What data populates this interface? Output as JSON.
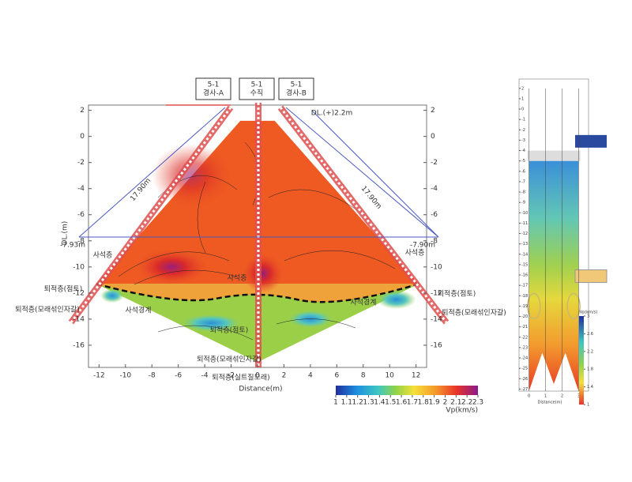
{
  "chart_data": [
    {
      "type": "contour",
      "xlabel": "Distance(m)",
      "ylabel": "DL.(m)",
      "xlim": [
        -12.8,
        12.8
      ],
      "xticks": [
        -12,
        -10,
        -8,
        -6,
        -4,
        -2,
        0,
        2,
        4,
        6,
        8,
        10,
        12
      ],
      "ylim": [
        -17.7,
        2.4
      ],
      "yticks": [
        2,
        0,
        -2,
        -4,
        -6,
        -8,
        -10,
        -12,
        -14,
        -16
      ],
      "colorbar": {
        "label": "Vp(km/s)",
        "ticks": [
          1,
          1.1,
          1.2,
          1.3,
          1.4,
          1.5,
          1.6,
          1.7,
          1.8,
          1.9,
          2,
          2.1,
          2.2,
          2.3
        ]
      },
      "annotations": [
        "5-1",
        "경사-A",
        "5-1",
        "수직",
        "5-1",
        "경사-B",
        "DL.(+)2.2m",
        "-7.93m",
        "-7.90m",
        "17.90m",
        "17.90m",
        "사석층",
        "사석층",
        "사석층",
        "퇴적층(점토)",
        "퇴적층(점토)",
        "퇴적층(모래섞인자갈)",
        "퇴적층(모래섞인자갈)",
        "사석경계",
        "사석경계",
        "퇴적층(점토)",
        "퇴적층(모래섞인자갈)",
        "퇴적층(실트질모래)"
      ]
    },
    {
      "type": "contour",
      "xlabel": "Distance(m)",
      "ylim": [
        -27.2,
        2.9
      ],
      "yticks": [
        2,
        1,
        0,
        -1,
        -2,
        -3,
        -4,
        -5,
        -6,
        -7,
        -8,
        -9,
        -10,
        -11,
        -12,
        -13,
        -14,
        -15,
        -16,
        -17,
        -18,
        -19,
        -20,
        -21,
        -22,
        -23,
        -24,
        -25,
        -26,
        -27
      ],
      "xticks": [
        0,
        1,
        2,
        3
      ],
      "xlim": [
        -0.6,
        3.6
      ],
      "colorbar": {
        "label": "Vp(km/s)",
        "ticks": [
          3.0,
          2.6,
          2.2,
          1.8,
          1.4,
          1.0
        ]
      }
    }
  ]
}
